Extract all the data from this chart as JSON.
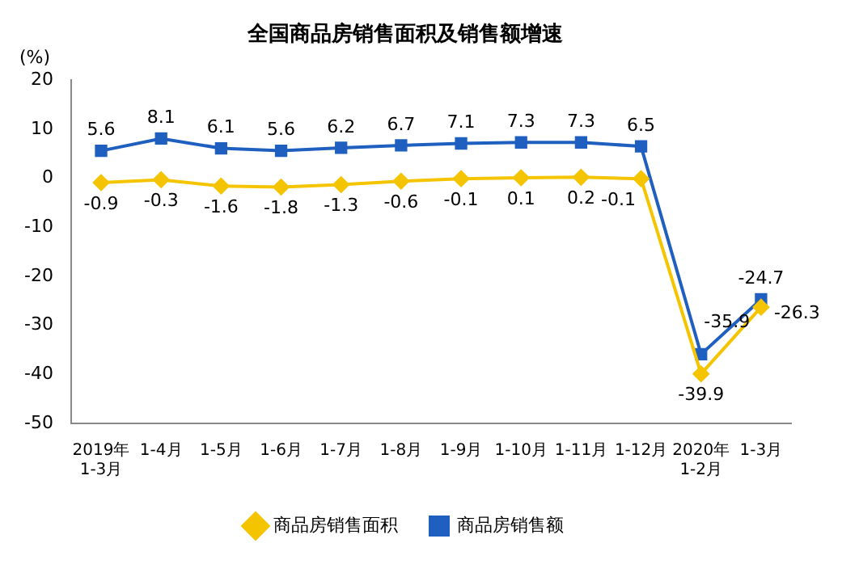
{
  "chart_data": {
    "type": "line",
    "title": "全国商品房销售面积及销售额增速",
    "ylabel": "(%)",
    "categories": [
      "2019年\n1-3月",
      "1-4月",
      "1-5月",
      "1-6月",
      "1-7月",
      "1-8月",
      "1-9月",
      "1-10月",
      "1-11月",
      "1-12月",
      "2020年\n1-2月",
      "1-3月"
    ],
    "series": [
      {
        "name": "商品房销售面积",
        "color": "#f5c400",
        "marker": "diamond",
        "values": [
          -0.9,
          -0.3,
          -1.6,
          -1.8,
          -1.3,
          -0.6,
          -0.1,
          0.1,
          0.2,
          -0.1,
          -39.9,
          -26.3
        ]
      },
      {
        "name": "商品房销售额",
        "color": "#1f5fbf",
        "marker": "square",
        "values": [
          5.6,
          8.1,
          6.1,
          5.6,
          6.2,
          6.7,
          7.1,
          7.3,
          7.3,
          6.5,
          -35.9,
          -24.7
        ]
      }
    ],
    "ylim": [
      -50,
      20
    ],
    "yticks": [
      -50,
      -40,
      -30,
      -20,
      -10,
      0,
      10,
      20
    ],
    "grid": false,
    "legend": "bottom",
    "data_labels": true
  }
}
